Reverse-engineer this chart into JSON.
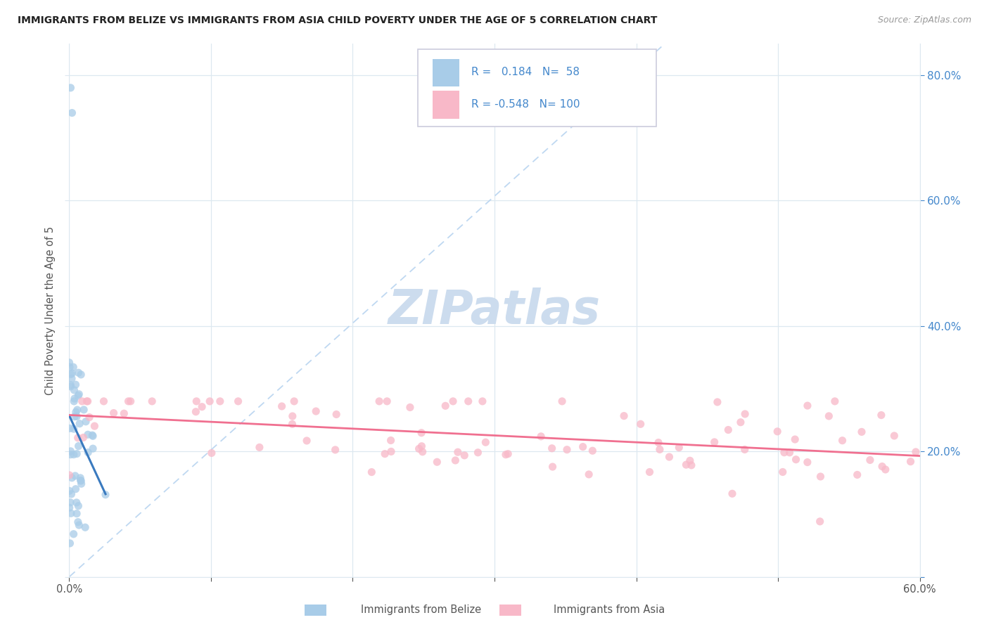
{
  "title": "IMMIGRANTS FROM BELIZE VS IMMIGRANTS FROM ASIA CHILD POVERTY UNDER THE AGE OF 5 CORRELATION CHART",
  "source": "Source: ZipAtlas.com",
  "ylabel": "Child Poverty Under the Age of 5",
  "legend_label1": "Immigrants from Belize",
  "legend_label2": "Immigrants from Asia",
  "r_belize": 0.184,
  "n_belize": 58,
  "r_asia": -0.548,
  "n_asia": 100,
  "color_belize": "#a8cce8",
  "color_asia": "#f8b8c8",
  "color_belize_line": "#3a7abf",
  "color_asia_line": "#f07090",
  "color_dashed": "#b8d4f0",
  "background_color": "#ffffff",
  "grid_color": "#dde8f0",
  "watermark_color": "#ccdcee",
  "right_tick_color": "#4488cc",
  "x_min": 0.0,
  "x_max": 0.6,
  "y_min": 0.0,
  "y_max": 0.85
}
